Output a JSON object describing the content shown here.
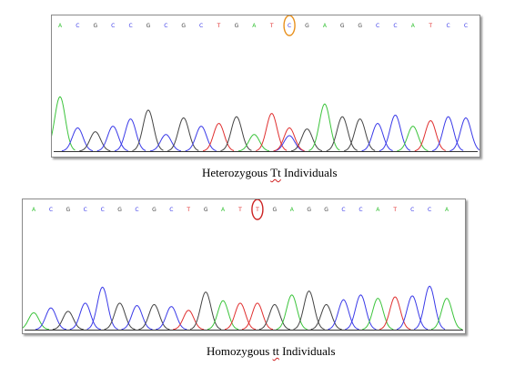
{
  "colors": {
    "A": "#3cc43c",
    "C": "#3a3ae8",
    "G": "#444444",
    "T": "#e03030",
    "het_marker": "#e8901c",
    "hom_marker": "#cc2222",
    "squiggle": "#d02020"
  },
  "panels": [
    {
      "id": "heterozygous",
      "sequence": [
        "A",
        "C",
        "G",
        "C",
        "C",
        "G",
        "C",
        "G",
        "C",
        "T",
        "G",
        "A",
        "T",
        "C",
        "G",
        "A",
        "G",
        "G",
        "C",
        "C",
        "A",
        "T",
        "C",
        "C"
      ],
      "highlight_index": 13,
      "highlight_color": "het_marker",
      "peak_heights": [
        0.98,
        0.42,
        0.35,
        0.45,
        0.58,
        0.74,
        0.3,
        0.6,
        0.45,
        0.5,
        0.62,
        0.3,
        0.68,
        0.28,
        0.4,
        0.85,
        0.62,
        0.58,
        0.5,
        0.65,
        0.45,
        0.55,
        0.62,
        0.6
      ],
      "secondary_peak": {
        "index": 13,
        "base": "T",
        "height": 0.42
      },
      "caption": {
        "prefix": "Heterozygous ",
        "genotype": "Tt",
        "suffix": " Individuals"
      }
    },
    {
      "id": "homozygous",
      "sequence": [
        "A",
        "C",
        "G",
        "C",
        "C",
        "G",
        "C",
        "G",
        "C",
        "T",
        "G",
        "A",
        "T",
        "T",
        "G",
        "A",
        "G",
        "G",
        "C",
        "C",
        "A",
        "T",
        "C",
        "C",
        "A"
      ],
      "highlight_index": 13,
      "highlight_color": "hom_marker",
      "peak_heights": [
        0.35,
        0.45,
        0.38,
        0.55,
        0.88,
        0.55,
        0.5,
        0.52,
        0.48,
        0.4,
        0.78,
        0.6,
        0.55,
        0.55,
        0.52,
        0.72,
        0.8,
        0.52,
        0.62,
        0.72,
        0.65,
        0.68,
        0.7,
        0.9,
        0.65
      ],
      "caption": {
        "prefix": "Homozygous ",
        "genotype": "tt",
        "suffix": " Individuals"
      }
    }
  ]
}
